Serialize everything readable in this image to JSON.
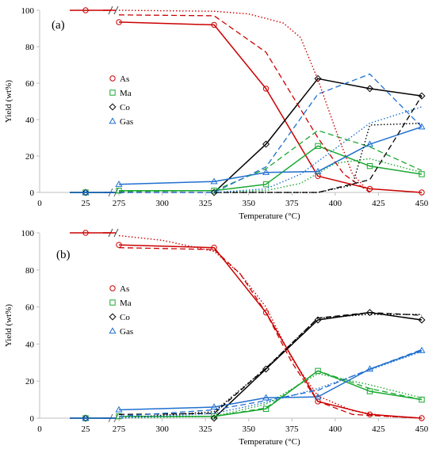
{
  "colors": {
    "As": "#cc0000",
    "Ma": "#1aa830",
    "Co": "#000000",
    "Gas": "#1f6fd0",
    "axis": "#bfbfbf"
  },
  "chart_data": [
    {
      "type": "line",
      "panel_label": "(a)",
      "title": "",
      "xlabel": "Temperature (°C)",
      "ylabel": "Yield (wt%)",
      "ylim": [
        0,
        100
      ],
      "yticks": [
        "0",
        "20",
        "40",
        "60",
        "80",
        "100"
      ],
      "xticks_main": [
        "275",
        "300",
        "325",
        "350",
        "375",
        "400",
        "425",
        "450"
      ],
      "xtick_break": "25",
      "xtick_origin": "0",
      "axis_break": true,
      "legend_position": "center-left",
      "legend": [
        {
          "name": "As",
          "marker": "circle"
        },
        {
          "name": "Ma",
          "marker": "square"
        },
        {
          "name": "Co",
          "marker": "diamond"
        },
        {
          "name": "Gas",
          "marker": "triangle"
        }
      ],
      "series": [
        {
          "name": "As",
          "style": "solid",
          "markers": true,
          "x": [
            275,
            330,
            360,
            390,
            420,
            450
          ],
          "y": [
            93.5,
            92,
            57,
            9,
            2,
            0
          ],
          "start_value": 100
        },
        {
          "name": "Ma",
          "style": "solid",
          "markers": true,
          "x": [
            275,
            330,
            360,
            390,
            420,
            450
          ],
          "y": [
            1,
            1,
            4.5,
            25.5,
            14.5,
            10
          ],
          "start_value": 0
        },
        {
          "name": "Co",
          "style": "solid",
          "markers": true,
          "x": [
            330,
            360,
            390,
            420,
            450
          ],
          "y": [
            0,
            26.5,
            62.5,
            57,
            53
          ],
          "start_value": 0
        },
        {
          "name": "Gas",
          "style": "solid",
          "markers": true,
          "x": [
            275,
            330,
            360,
            390,
            420,
            450
          ],
          "y": [
            4.5,
            6,
            11,
            11.5,
            26.5,
            36
          ],
          "start_value": 0
        },
        {
          "name": "As",
          "style": "dashed",
          "markers": false,
          "x": [
            275,
            330,
            360,
            390,
            405,
            420
          ],
          "y": [
            97.5,
            97,
            77,
            30,
            10,
            0
          ]
        },
        {
          "name": "Ma",
          "style": "dashed",
          "markers": false,
          "x": [
            275,
            330,
            360,
            390,
            420,
            450
          ],
          "y": [
            0.5,
            1,
            13,
            34,
            25,
            12
          ]
        },
        {
          "name": "Co",
          "style": "dashed",
          "markers": false,
          "x": [
            275,
            330,
            390,
            420,
            450
          ],
          "y": [
            0,
            0,
            0,
            7,
            53
          ]
        },
        {
          "name": "Gas",
          "style": "dashed",
          "markers": false,
          "x": [
            275,
            330,
            360,
            390,
            420,
            450
          ],
          "y": [
            0,
            0,
            14,
            54,
            65,
            36
          ]
        },
        {
          "name": "As",
          "style": "dotted",
          "markers": false,
          "x": [
            275,
            330,
            350,
            370,
            380,
            390,
            400,
            410,
            420
          ],
          "y": [
            100,
            99.5,
            98,
            93,
            85,
            62,
            35,
            10,
            0
          ]
        },
        {
          "name": "Ma",
          "style": "dotted",
          "markers": false,
          "x": [
            330,
            360,
            380,
            400,
            420,
            450
          ],
          "y": [
            0,
            1,
            5,
            16,
            18.5,
            11
          ]
        },
        {
          "name": "Co",
          "style": "dotted",
          "markers": false,
          "x": [
            330,
            390,
            410,
            420,
            450
          ],
          "y": [
            0,
            0,
            4,
            37,
            38
          ]
        },
        {
          "name": "Gas",
          "style": "dotted",
          "markers": false,
          "x": [
            330,
            360,
            380,
            400,
            420,
            450
          ],
          "y": [
            0,
            2,
            10,
            24,
            38,
            47
          ]
        }
      ]
    },
    {
      "type": "line",
      "panel_label": "(b)",
      "title": "",
      "xlabel": "Temperature (°C)",
      "ylabel": "Yield (wt%)",
      "ylim": [
        0,
        100
      ],
      "yticks": [
        "0",
        "20",
        "40",
        "60",
        "80",
        "100"
      ],
      "xticks_main": [
        "275",
        "300",
        "325",
        "350",
        "375",
        "400",
        "425",
        "450"
      ],
      "xtick_break": "25",
      "xtick_origin": "0",
      "axis_break": true,
      "legend_position": "center-left",
      "legend": [
        {
          "name": "As",
          "marker": "circle"
        },
        {
          "name": "Ma",
          "marker": "square"
        },
        {
          "name": "Co",
          "marker": "diamond"
        },
        {
          "name": "Gas",
          "marker": "triangle"
        }
      ],
      "series": [
        {
          "name": "As",
          "style": "solid",
          "markers": true,
          "x": [
            275,
            330,
            360,
            390,
            420,
            450
          ],
          "y": [
            93.5,
            92,
            57,
            9,
            2,
            0
          ],
          "start_value": 100
        },
        {
          "name": "Ma",
          "style": "solid",
          "markers": true,
          "x": [
            275,
            330,
            360,
            390,
            420,
            450
          ],
          "y": [
            1,
            1,
            5,
            25.5,
            14.5,
            10
          ],
          "start_value": 0
        },
        {
          "name": "Co",
          "style": "solid",
          "markers": true,
          "x": [
            330,
            360,
            390,
            420,
            450
          ],
          "y": [
            0,
            26.5,
            53,
            57,
            53
          ],
          "start_value": 0
        },
        {
          "name": "Gas",
          "style": "solid",
          "markers": true,
          "x": [
            275,
            330,
            360,
            390,
            420,
            450
          ],
          "y": [
            4.5,
            6,
            11,
            11.5,
            26.5,
            36.5
          ],
          "start_value": 0
        },
        {
          "name": "As",
          "style": "dashed",
          "markers": false,
          "x": [
            275,
            330,
            345,
            360,
            375,
            390,
            410,
            430,
            450
          ],
          "y": [
            92,
            91,
            78,
            57,
            30,
            9,
            2,
            1,
            0
          ]
        },
        {
          "name": "Ma",
          "style": "dashed",
          "markers": false,
          "x": [
            275,
            330,
            360,
            390,
            420,
            450
          ],
          "y": [
            1,
            1,
            5.5,
            25.5,
            16,
            10
          ]
        },
        {
          "name": "Co",
          "style": "dashed",
          "markers": false,
          "x": [
            275,
            330,
            360,
            390,
            420,
            450
          ],
          "y": [
            2,
            2.5,
            27,
            54,
            57,
            55.5
          ]
        },
        {
          "name": "Gas",
          "style": "dashed",
          "markers": false,
          "x": [
            275,
            330,
            360,
            390,
            420,
            450
          ],
          "y": [
            1,
            4.5,
            9.5,
            15,
            26.5,
            37
          ]
        },
        {
          "name": "As",
          "style": "dotted",
          "markers": false,
          "x": [
            275,
            300,
            330,
            345,
            360,
            375,
            390,
            410,
            430,
            450
          ],
          "y": [
            98.5,
            96,
            90,
            78,
            60,
            32,
            12,
            4,
            1,
            0
          ]
        },
        {
          "name": "Ma",
          "style": "dotted",
          "markers": false,
          "x": [
            275,
            330,
            360,
            390,
            420,
            450
          ],
          "y": [
            0,
            1,
            7.5,
            24,
            18,
            11
          ]
        },
        {
          "name": "Co",
          "style": "dotted",
          "markers": false,
          "x": [
            275,
            330,
            360,
            390,
            420,
            450
          ],
          "y": [
            0,
            3.5,
            27,
            54,
            56,
            56
          ]
        },
        {
          "name": "Gas",
          "style": "dotted",
          "markers": false,
          "x": [
            275,
            330,
            360,
            390,
            420,
            450
          ],
          "y": [
            0,
            2.5,
            8.5,
            16,
            26,
            36
          ]
        }
      ]
    }
  ]
}
